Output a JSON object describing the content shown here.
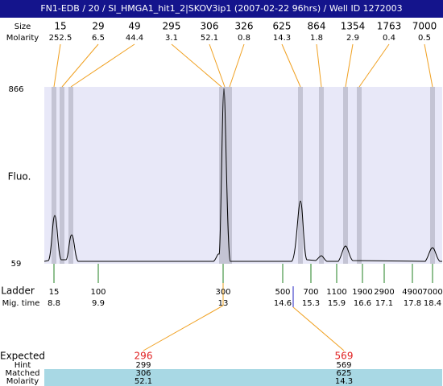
{
  "header": {
    "title": "FN1-EDB / 20 / SI_HMGA1_hit1_2|SKOV3ip1 (2007-02-22 96hrs) / Well ID 1272003"
  },
  "peaks": {
    "size_label": "Size",
    "molarity_label": "Molarity",
    "items": [
      {
        "size": 15,
        "molarity": 252.5
      },
      {
        "size": 29,
        "molarity": 6.5
      },
      {
        "size": 49,
        "molarity": 44.4
      },
      {
        "size": 295,
        "molarity": 3.1
      },
      {
        "size": 306,
        "molarity": 52.1
      },
      {
        "size": 326,
        "molarity": 0.8
      },
      {
        "size": 625,
        "molarity": 14.3
      },
      {
        "size": 864,
        "molarity": 1.8
      },
      {
        "size": 1354,
        "molarity": 2.9
      },
      {
        "size": 1763,
        "molarity": 0.4
      },
      {
        "size": 7000,
        "molarity": 0.5
      }
    ]
  },
  "plot": {
    "y_label": "Fluo.",
    "y_max": 866,
    "y_min": 59
  },
  "ladder": {
    "label": "Ladder",
    "time_label": "Mig. time",
    "items": [
      {
        "size": 15,
        "time": 8.8
      },
      {
        "size": 100,
        "time": 9.9
      },
      {
        "size": 300,
        "time": 13
      },
      {
        "size": 500,
        "time": 14.6
      },
      {
        "size": 700,
        "time": 15.3
      },
      {
        "size": 1100,
        "time": 15.9
      },
      {
        "size": 1900,
        "time": 16.6
      },
      {
        "size": 2900,
        "time": 17.1
      },
      {
        "size": 4900,
        "time": 17.8
      },
      {
        "size": 7000,
        "time": 18.4
      }
    ]
  },
  "expected": {
    "label": "Expected",
    "hint_label": "Hint",
    "matched_label": "Matched",
    "molarity_label": "Molarity",
    "items": [
      {
        "expected": 296,
        "hint": 299,
        "matched": 306,
        "molarity": 52.1
      },
      {
        "expected": 569,
        "hint": 569,
        "matched": 625,
        "molarity": 14.3
      }
    ]
  }
}
